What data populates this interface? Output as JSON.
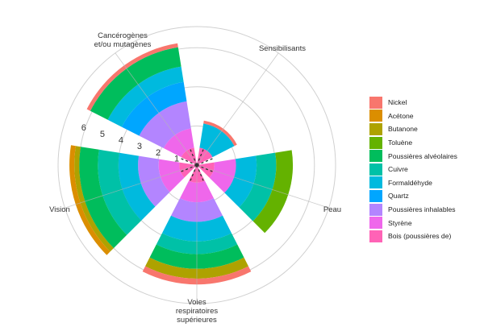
{
  "chart_data": {
    "type": "bar",
    "subtype": "stacked-polar",
    "categories": [
      "Sensibilisants",
      "Peau",
      "Voies respiratoires supérieures",
      "Vision",
      "Cancérogènes et/ou mutagènes"
    ],
    "category_label_lines": [
      [
        "Sensibilisants"
      ],
      [
        "Peau"
      ],
      [
        "Voies",
        "respiratoires",
        "supérieures"
      ],
      [
        "Vision"
      ],
      [
        "Cancérogènes",
        "et/ou mutagènes"
      ]
    ],
    "radial_ticks": [
      "1",
      "2",
      "3",
      "4",
      "5",
      "6"
    ],
    "rlim": [
      0,
      7
    ],
    "grid": true,
    "legend_position": "right",
    "series": [
      {
        "name": "Nickel",
        "color": "#F8766D",
        "values": [
          0.15,
          0,
          0.3,
          0,
          0.2
        ]
      },
      {
        "name": "Acétone",
        "color": "#DB8E00",
        "values": [
          0,
          0,
          0,
          0.25,
          0
        ]
      },
      {
        "name": "Butanone",
        "color": "#AEA200",
        "values": [
          0,
          0,
          0.5,
          0.25,
          0
        ]
      },
      {
        "name": "Toluène",
        "color": "#64B200",
        "values": [
          0,
          0.85,
          0,
          0,
          0
        ]
      },
      {
        "name": "Poussières alvéolaires",
        "color": "#00BD5C",
        "values": [
          0,
          0,
          0.75,
          0.95,
          1.0
        ]
      },
      {
        "name": "Cuivre",
        "color": "#00C1A7",
        "values": [
          0,
          1.0,
          0.65,
          1.05,
          0
        ]
      },
      {
        "name": "Formaldéhyde",
        "color": "#00BADE",
        "values": [
          1.25,
          1.05,
          1.0,
          1.0,
          0.8
        ]
      },
      {
        "name": "Quartz",
        "color": "#00A6FF",
        "values": [
          0,
          0,
          0,
          0,
          1.0
        ]
      },
      {
        "name": "Poussières inhalables",
        "color": "#B385FF",
        "values": [
          0,
          0,
          1.0,
          1.05,
          1.4
        ]
      },
      {
        "name": "Styrène",
        "color": "#EF67EB",
        "values": [
          0,
          1.1,
          1.0,
          1.05,
          1.0
        ]
      },
      {
        "name": "Bois (poussières de)",
        "color": "#FF63B6",
        "values": [
          0.9,
          0.9,
          0.9,
          0.9,
          0.9
        ]
      }
    ]
  }
}
